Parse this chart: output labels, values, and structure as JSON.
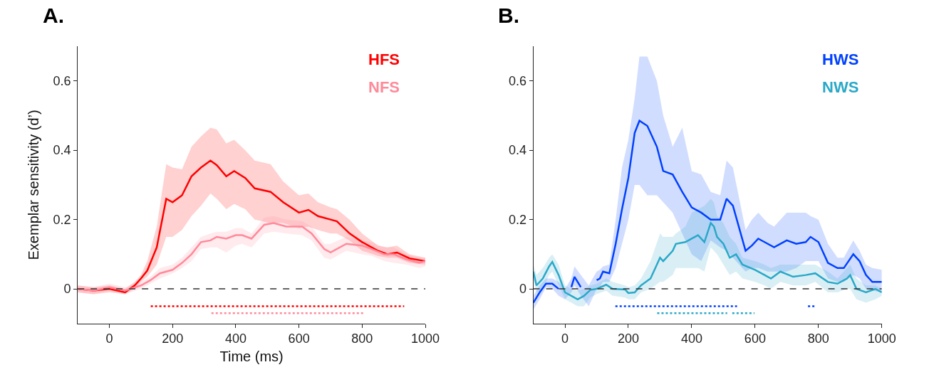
{
  "chart_data": [
    {
      "type": "line",
      "title": "A.",
      "xlabel": "Time (ms)",
      "ylabel": "Exemplar sensitivity (d’)",
      "xlim": [
        -100,
        1000
      ],
      "xticks": [
        0,
        200,
        400,
        600,
        800,
        1000
      ],
      "ylim": [
        -0.1,
        0.7
      ],
      "yticks": [
        0,
        0.2,
        0.4,
        0.6
      ],
      "legend": "top right",
      "ref_lines": [
        {
          "axis": "y",
          "value": 0,
          "color": "#333333",
          "line_style": "dashed"
        }
      ],
      "series": [
        {
          "name": "HFS",
          "color": "#ff0000",
          "x": [
            -100,
            -50,
            0,
            50,
            80,
            100,
            120,
            150,
            180,
            200,
            230,
            260,
            290,
            320,
            340,
            370,
            395,
            430,
            460,
            510,
            550,
            600,
            630,
            660,
            700,
            720,
            760,
            800,
            850,
            880,
            910,
            950,
            1000
          ],
          "values": [
            0,
            -0.005,
            0,
            -0.01,
            0.01,
            0.03,
            0.053,
            0.12,
            0.26,
            0.25,
            0.27,
            0.325,
            0.35,
            0.37,
            0.357,
            0.325,
            0.34,
            0.32,
            0.29,
            0.28,
            0.25,
            0.22,
            0.228,
            0.21,
            0.2,
            0.195,
            0.16,
            0.135,
            0.11,
            0.1,
            0.105,
            0.088,
            0.08
          ],
          "upper": [
            0.01,
            0.005,
            0.01,
            0.0,
            0.02,
            0.04,
            0.08,
            0.18,
            0.36,
            0.35,
            0.345,
            0.41,
            0.44,
            0.465,
            0.46,
            0.42,
            0.43,
            0.4,
            0.37,
            0.36,
            0.31,
            0.27,
            0.275,
            0.25,
            0.235,
            0.23,
            0.2,
            0.16,
            0.125,
            0.12,
            0.125,
            0.1,
            0.09
          ],
          "lower": [
            -0.01,
            -0.015,
            -0.01,
            -0.015,
            0.0,
            0.02,
            0.035,
            0.07,
            0.15,
            0.15,
            0.17,
            0.21,
            0.24,
            0.275,
            0.26,
            0.23,
            0.245,
            0.23,
            0.2,
            0.19,
            0.19,
            0.175,
            0.18,
            0.17,
            0.16,
            0.16,
            0.14,
            0.11,
            0.095,
            0.09,
            0.09,
            0.075,
            0.07
          ]
        },
        {
          "name": "NFS",
          "color": "#ff8a9a",
          "x": [
            -100,
            -50,
            0,
            50,
            100,
            130,
            160,
            200,
            230,
            260,
            290,
            320,
            340,
            370,
            400,
            420,
            450,
            490,
            520,
            560,
            610,
            640,
            680,
            700,
            750,
            800,
            830,
            870,
            900,
            940,
            980,
            1000
          ],
          "values": [
            0,
            -0.005,
            0.005,
            -0.005,
            0.01,
            0.025,
            0.045,
            0.055,
            0.075,
            0.1,
            0.135,
            0.14,
            0.15,
            0.145,
            0.155,
            0.155,
            0.145,
            0.185,
            0.19,
            0.18,
            0.18,
            0.16,
            0.115,
            0.105,
            0.13,
            0.125,
            0.115,
            0.1,
            0.1,
            0.085,
            0.075,
            0.08
          ],
          "upper": [
            0.01,
            0.005,
            0.015,
            0.005,
            0.02,
            0.035,
            0.06,
            0.07,
            0.09,
            0.12,
            0.15,
            0.16,
            0.165,
            0.165,
            0.175,
            0.175,
            0.16,
            0.205,
            0.21,
            0.2,
            0.195,
            0.18,
            0.13,
            0.13,
            0.15,
            0.14,
            0.135,
            0.12,
            0.12,
            0.1,
            0.09,
            0.09
          ],
          "lower": [
            -0.01,
            -0.015,
            -0.005,
            -0.015,
            0.0,
            0.015,
            0.03,
            0.045,
            0.06,
            0.08,
            0.115,
            0.12,
            0.12,
            0.105,
            0.125,
            0.13,
            0.12,
            0.16,
            0.165,
            0.16,
            0.155,
            0.14,
            0.09,
            0.085,
            0.11,
            0.1,
            0.095,
            0.08,
            0.075,
            0.07,
            0.06,
            0.065
          ]
        },
        {
          "color": "#ff0000",
          "line_style": "dotted",
          "x": [
            131,
            933
          ],
          "values": [
            -0.05,
            -0.05
          ]
        },
        {
          "color": "#ff8a9a",
          "line_style": "dotted",
          "x": [
            323,
            803
          ],
          "values": [
            -0.07,
            -0.07
          ]
        }
      ]
    },
    {
      "type": "line",
      "title": "B.",
      "xlim": [
        -100,
        1000
      ],
      "xticks": [
        0,
        200,
        400,
        600,
        800,
        1000
      ],
      "ylim": [
        -0.1,
        0.7
      ],
      "yticks": [
        0,
        0.2,
        0.4,
        0.6
      ],
      "legend": "top right",
      "ref_lines": [
        {
          "axis": "y",
          "value": 0,
          "color": "#333333",
          "line_style": "dashed"
        }
      ],
      "series": [
        {
          "name": "HWS",
          "color": "#0040ff",
          "x": [
            -100,
            -80,
            -60,
            -40,
            -20,
            0,
            20,
            30,
            50,
            75,
            100,
            110,
            120,
            140,
            160,
            180,
            200,
            220,
            235,
            260,
            290,
            310,
            340,
            370,
            400,
            430,
            460,
            490,
            510,
            530,
            570,
            590,
            610,
            640,
            660,
            700,
            730,
            760,
            775,
            800,
            830,
            860,
            880,
            910,
            930,
            950,
            970,
            1000
          ],
          "values": [
            -0.04,
            -0.01,
            0.015,
            0.015,
            0.0,
            null,
            0.005,
            0.035,
            0.005,
            null,
            0.025,
            0.03,
            0.05,
            0.045,
            0.13,
            0.23,
            0.32,
            0.45,
            0.485,
            0.47,
            0.41,
            0.34,
            0.33,
            0.28,
            0.235,
            0.22,
            0.2,
            0.2,
            0.26,
            0.24,
            0.11,
            0.125,
            0.145,
            0.13,
            0.12,
            0.14,
            0.13,
            0.135,
            0.15,
            0.135,
            0.075,
            0.06,
            0.06,
            0.1,
            0.08,
            0.04,
            0.02,
            0.02
          ],
          "upper": [
            -0.02,
            0.01,
            0.03,
            0.03,
            0.02,
            0.0,
            0.03,
            0.065,
            0.04,
            0.01,
            0.05,
            0.055,
            0.065,
            0.07,
            0.2,
            0.35,
            0.43,
            0.55,
            0.67,
            0.67,
            0.6,
            0.5,
            0.41,
            0.465,
            0.34,
            0.33,
            0.28,
            0.27,
            0.37,
            0.35,
            0.17,
            0.2,
            0.22,
            0.19,
            0.18,
            0.22,
            0.22,
            0.22,
            0.21,
            0.2,
            0.13,
            0.09,
            0.09,
            0.14,
            0.11,
            0.07,
            0.06,
            0.055
          ],
          "lower": [
            -0.06,
            -0.03,
            0.005,
            0.0,
            -0.02,
            -0.03,
            -0.01,
            0.01,
            -0.02,
            -0.05,
            0.0,
            0.005,
            0.02,
            0.02,
            0.06,
            0.13,
            0.2,
            0.3,
            0.3,
            0.27,
            0.27,
            0.25,
            0.22,
            0.16,
            0.1,
            0.08,
            0.14,
            0.12,
            0.11,
            0.09,
            0.05,
            0.06,
            0.06,
            0.05,
            0.05,
            0.05,
            0.06,
            0.08,
            0.08,
            0.08,
            0.03,
            0.02,
            0.02,
            0.04,
            0.03,
            0.0,
            -0.005,
            -0.01
          ]
        },
        {
          "name": "NWS",
          "color": "#2aa8c8",
          "x": [
            -100,
            -90,
            -70,
            -50,
            -40,
            -20,
            0,
            20,
            40,
            60,
            80,
            100,
            130,
            150,
            190,
            200,
            220,
            240,
            270,
            300,
            310,
            340,
            350,
            380,
            400,
            420,
            440,
            460,
            470,
            480,
            500,
            520,
            540,
            560,
            600,
            630,
            650,
            680,
            720,
            760,
            790,
            830,
            860,
            890,
            900,
            920,
            950,
            980,
            1000
          ],
          "values": [
            0.05,
            0.01,
            0.03,
            0.065,
            0.078,
            0.04,
            -0.01,
            -0.02,
            -0.03,
            -0.02,
            -0.003,
            0.0,
            0.012,
            0.0,
            -0.002,
            -0.012,
            -0.01,
            0.01,
            0.03,
            0.09,
            0.08,
            0.11,
            0.13,
            0.135,
            0.145,
            0.155,
            0.135,
            0.19,
            0.18,
            0.15,
            0.13,
            0.09,
            0.1,
            0.07,
            0.055,
            0.04,
            0.03,
            0.05,
            0.035,
            0.04,
            0.045,
            0.02,
            0.015,
            0.03,
            0.04,
            0.0,
            -0.01,
            0.0,
            -0.01
          ],
          "upper": [
            0.07,
            0.04,
            0.06,
            0.09,
            0.1,
            0.07,
            0.01,
            0.0,
            -0.005,
            0.0,
            0.01,
            0.015,
            0.03,
            0.02,
            0.01,
            0.005,
            0.01,
            0.03,
            0.08,
            0.16,
            0.15,
            0.15,
            0.16,
            0.18,
            0.22,
            0.23,
            0.24,
            0.26,
            0.25,
            0.21,
            0.19,
            0.15,
            0.13,
            0.09,
            0.08,
            0.07,
            0.06,
            0.07,
            0.07,
            0.07,
            0.07,
            0.05,
            0.03,
            0.06,
            0.07,
            0.03,
            0.01,
            0.01,
            0.0
          ],
          "lower": [
            0.03,
            -0.01,
            0.0,
            0.04,
            0.05,
            0.01,
            -0.03,
            -0.04,
            -0.05,
            -0.05,
            -0.025,
            -0.015,
            -0.005,
            -0.02,
            -0.025,
            -0.03,
            -0.03,
            -0.01,
            0.0,
            0.02,
            0.02,
            0.04,
            0.06,
            0.06,
            0.06,
            0.06,
            0.05,
            0.12,
            0.11,
            0.1,
            0.07,
            0.04,
            0.05,
            0.03,
            0.02,
            0.01,
            0.0,
            0.02,
            0.01,
            0.01,
            0.02,
            -0.01,
            -0.01,
            0.0,
            0.0,
            -0.03,
            -0.04,
            -0.03,
            -0.02
          ]
        },
        {
          "color": "#0040ff",
          "line_style": "dotted",
          "x": [
            159,
            543,
            650,
            767,
            793
          ],
          "values": [
            -0.05,
            -0.05,
            null,
            -0.05,
            -0.05
          ]
        },
        {
          "color": "#2aa8c8",
          "line_style": "dotted",
          "x": [
            291,
            512,
            520,
            528,
            598
          ],
          "values": [
            -0.07,
            -0.07,
            null,
            -0.07,
            -0.07
          ]
        }
      ]
    }
  ]
}
